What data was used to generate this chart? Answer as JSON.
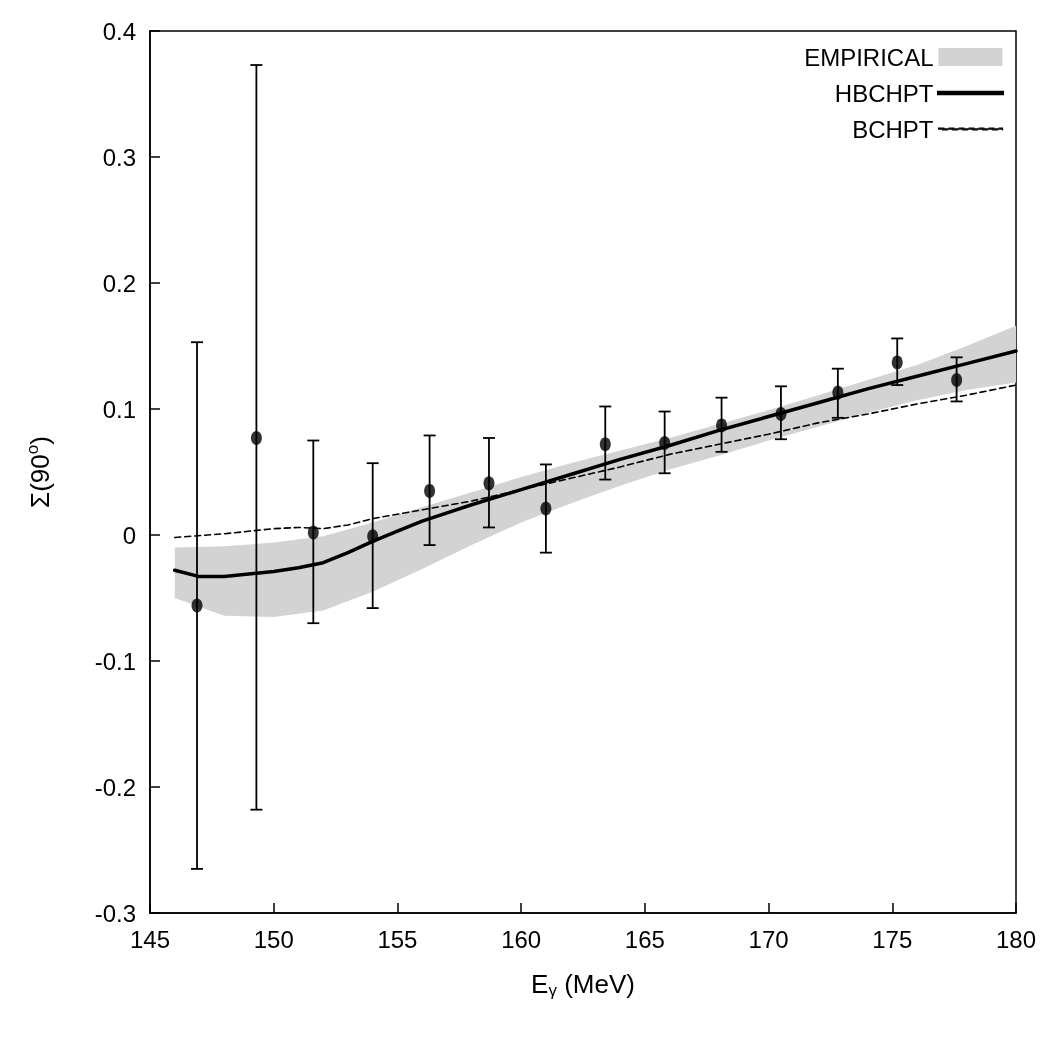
{
  "chart_data": {
    "type": "line",
    "xlabel": "E$_{γ}$ (MeV)",
    "ylabel": "Σ(90$^{o}$)",
    "xlim": [
      145,
      180
    ],
    "xticks": [
      145,
      150,
      155,
      160,
      165,
      170,
      175,
      180
    ],
    "ylim": [
      -0.3,
      0.4
    ],
    "yticks": [
      -0.3,
      -0.2,
      -0.1,
      0,
      0.1,
      0.2,
      0.3,
      0.4
    ],
    "grid": false,
    "legend": "top right",
    "series": [
      {
        "name": "EMPIRICAL",
        "type": "area",
        "color": "#d3d3d3",
        "x": [
          146,
          148,
          150,
          152,
          154,
          156,
          158,
          160,
          162,
          164,
          166,
          168,
          170,
          172,
          174,
          176,
          178,
          180
        ],
        "values": [
          null,
          null,
          null,
          null,
          null,
          null,
          null,
          null,
          null,
          null,
          null,
          null,
          null,
          null,
          null,
          null,
          null,
          null
        ],
        "lower": [
          -0.05,
          -0.064,
          -0.065,
          -0.06,
          -0.045,
          -0.027,
          -0.008,
          0.01,
          0.025,
          0.039,
          0.052,
          0.063,
          0.075,
          0.086,
          0.097,
          0.107,
          0.115,
          0.121
        ],
        "upper": [
          -0.01,
          -0.009,
          -0.006,
          -0.001,
          0.01,
          0.022,
          0.034,
          0.046,
          0.057,
          0.067,
          0.077,
          0.088,
          0.099,
          0.111,
          0.123,
          0.135,
          0.15,
          0.166
        ]
      },
      {
        "name": "HBCHPT",
        "color": "#000000",
        "line_style": "solid",
        "marker": "none",
        "x": [
          146,
          147,
          148,
          150,
          151,
          152,
          153,
          154,
          155,
          156,
          158,
          160,
          162,
          164,
          166,
          168,
          170,
          172,
          174,
          176,
          178,
          180
        ],
        "values": [
          -0.028,
          -0.033,
          -0.033,
          -0.029,
          -0.026,
          -0.022,
          -0.014,
          -0.005,
          0.003,
          0.011,
          0.024,
          0.036,
          0.048,
          0.06,
          0.071,
          0.083,
          0.094,
          0.105,
          0.116,
          0.126,
          0.136,
          0.146
        ]
      },
      {
        "name": "BCHPT",
        "color": "#000000",
        "line_style": "dashed",
        "marker": "none",
        "x": [
          146,
          148,
          150,
          151,
          152,
          153,
          154,
          156,
          158,
          160,
          162,
          164,
          166,
          168,
          170,
          172,
          174,
          176,
          178,
          180
        ],
        "values": [
          -0.002,
          0.001,
          0.005,
          0.006,
          0.005,
          0.008,
          0.013,
          0.02,
          0.027,
          0.036,
          0.045,
          0.054,
          0.064,
          0.072,
          0.08,
          0.089,
          0.096,
          0.104,
          0.111,
          0.119
        ]
      },
      {
        "type": "scatter",
        "color": "#000000",
        "marker": "circle",
        "x": [
          146.9,
          149.3,
          151.6,
          154.0,
          156.3,
          158.7,
          161.0,
          163.4,
          165.8,
          168.1,
          170.5,
          172.8,
          175.2,
          177.6
        ],
        "values": [
          -0.056,
          0.077,
          0.002,
          -0.001,
          0.035,
          0.041,
          0.021,
          0.072,
          0.073,
          0.087,
          0.096,
          0.113,
          0.137,
          0.123
        ],
        "errors": [
          [
            -0.265,
            0.153
          ],
          [
            -0.218,
            0.373
          ],
          [
            -0.07,
            0.075
          ],
          [
            -0.058,
            0.057
          ],
          [
            -0.008,
            0.079
          ],
          [
            0.006,
            0.077
          ],
          [
            -0.014,
            0.056
          ],
          [
            0.044,
            0.102
          ],
          [
            0.049,
            0.098
          ],
          [
            0.066,
            0.109
          ],
          [
            0.076,
            0.118
          ],
          [
            0.093,
            0.132
          ],
          [
            0.119,
            0.156
          ],
          [
            0.106,
            0.141
          ]
        ]
      }
    ]
  }
}
